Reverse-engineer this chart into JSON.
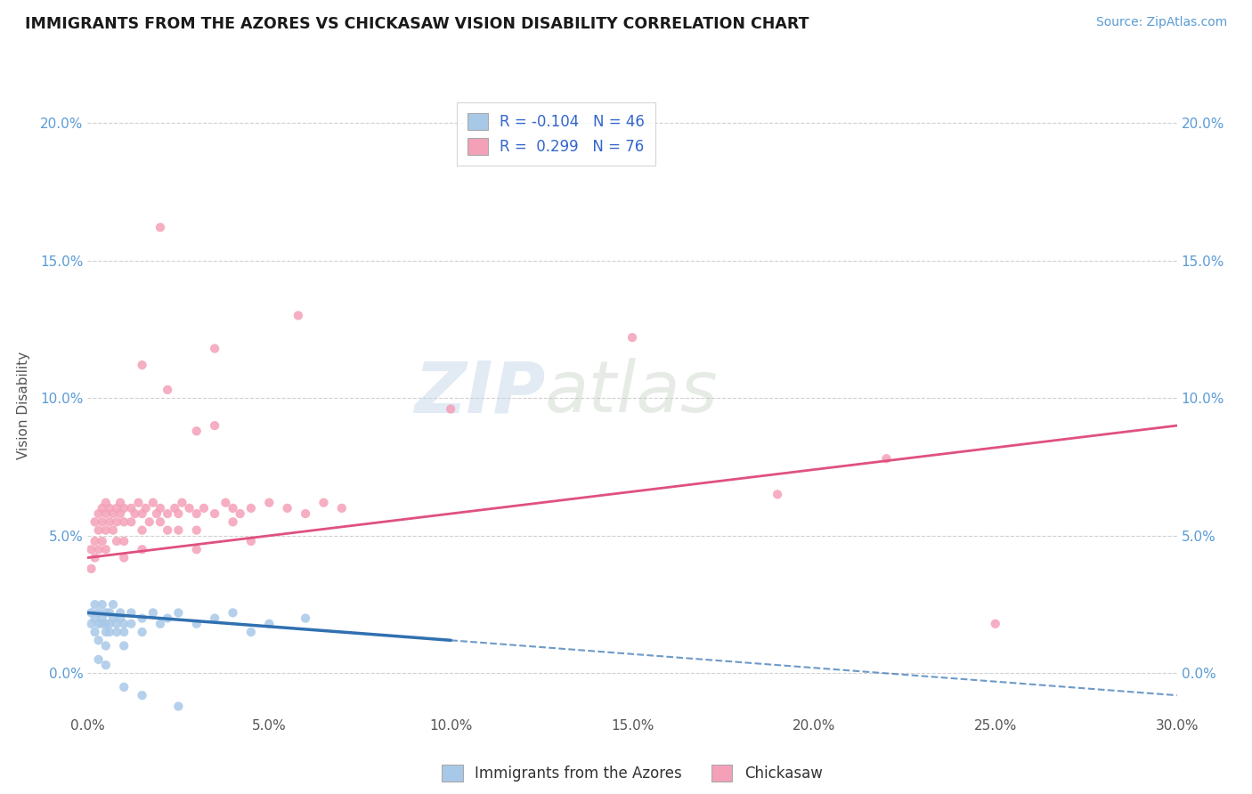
{
  "title": "IMMIGRANTS FROM THE AZORES VS CHICKASAW VISION DISABILITY CORRELATION CHART",
  "source_text": "Source: ZipAtlas.com",
  "xlabel_ticks": [
    "0.0%",
    "5.0%",
    "10.0%",
    "15.0%",
    "20.0%",
    "25.0%",
    "30.0%"
  ],
  "xlabel_vals": [
    0.0,
    0.05,
    0.1,
    0.15,
    0.2,
    0.25,
    0.3
  ],
  "ylabel_ticks": [
    "0.0%",
    "5.0%",
    "10.0%",
    "15.0%",
    "20.0%"
  ],
  "ylabel_vals": [
    0.0,
    0.05,
    0.1,
    0.15,
    0.2
  ],
  "xmin": 0.0,
  "xmax": 0.3,
  "ymin": -0.015,
  "ymax": 0.21,
  "ylabel": "Vision Disability",
  "watermark_zip": "ZIP",
  "watermark_atlas": "atlas",
  "legend_blue_label": "R = -0.104   N = 46",
  "legend_pink_label": "R =  0.299   N = 76",
  "legend_bottom_blue": "Immigrants from the Azores",
  "legend_bottom_pink": "Chickasaw",
  "blue_color": "#a8c8e8",
  "pink_color": "#f4a0b8",
  "blue_line_color": "#3070b0",
  "pink_line_color": "#e05080",
  "blue_line_solid_end": 0.1,
  "blue_line_xstart": 0.0,
  "blue_line_xend": 0.3,
  "pink_line_xstart": 0.0,
  "pink_line_xend": 0.3,
  "blue_scatter": [
    [
      0.001,
      0.022
    ],
    [
      0.001,
      0.018
    ],
    [
      0.002,
      0.025
    ],
    [
      0.002,
      0.02
    ],
    [
      0.002,
      0.015
    ],
    [
      0.003,
      0.022
    ],
    [
      0.003,
      0.018
    ],
    [
      0.003,
      0.012
    ],
    [
      0.004,
      0.02
    ],
    [
      0.004,
      0.025
    ],
    [
      0.004,
      0.018
    ],
    [
      0.005,
      0.022
    ],
    [
      0.005,
      0.018
    ],
    [
      0.005,
      0.015
    ],
    [
      0.005,
      0.01
    ],
    [
      0.006,
      0.022
    ],
    [
      0.006,
      0.018
    ],
    [
      0.006,
      0.015
    ],
    [
      0.007,
      0.02
    ],
    [
      0.007,
      0.025
    ],
    [
      0.008,
      0.018
    ],
    [
      0.008,
      0.015
    ],
    [
      0.009,
      0.02
    ],
    [
      0.009,
      0.022
    ],
    [
      0.01,
      0.018
    ],
    [
      0.01,
      0.015
    ],
    [
      0.01,
      0.01
    ],
    [
      0.012,
      0.022
    ],
    [
      0.012,
      0.018
    ],
    [
      0.015,
      0.02
    ],
    [
      0.015,
      0.015
    ],
    [
      0.018,
      0.022
    ],
    [
      0.02,
      0.018
    ],
    [
      0.022,
      0.02
    ],
    [
      0.025,
      0.022
    ],
    [
      0.03,
      0.018
    ],
    [
      0.035,
      0.02
    ],
    [
      0.04,
      0.022
    ],
    [
      0.045,
      0.015
    ],
    [
      0.05,
      0.018
    ],
    [
      0.06,
      0.02
    ],
    [
      0.003,
      0.005
    ],
    [
      0.005,
      0.003
    ],
    [
      0.01,
      -0.005
    ],
    [
      0.015,
      -0.008
    ],
    [
      0.025,
      -0.012
    ]
  ],
  "pink_scatter": [
    [
      0.001,
      0.045
    ],
    [
      0.001,
      0.038
    ],
    [
      0.002,
      0.055
    ],
    [
      0.002,
      0.048
    ],
    [
      0.002,
      0.042
    ],
    [
      0.003,
      0.058
    ],
    [
      0.003,
      0.052
    ],
    [
      0.003,
      0.045
    ],
    [
      0.004,
      0.06
    ],
    [
      0.004,
      0.055
    ],
    [
      0.004,
      0.048
    ],
    [
      0.005,
      0.062
    ],
    [
      0.005,
      0.058
    ],
    [
      0.005,
      0.052
    ],
    [
      0.005,
      0.045
    ],
    [
      0.006,
      0.06
    ],
    [
      0.006,
      0.055
    ],
    [
      0.007,
      0.058
    ],
    [
      0.007,
      0.052
    ],
    [
      0.008,
      0.06
    ],
    [
      0.008,
      0.055
    ],
    [
      0.008,
      0.048
    ],
    [
      0.009,
      0.062
    ],
    [
      0.009,
      0.058
    ],
    [
      0.01,
      0.06
    ],
    [
      0.01,
      0.055
    ],
    [
      0.01,
      0.048
    ],
    [
      0.01,
      0.042
    ],
    [
      0.012,
      0.06
    ],
    [
      0.012,
      0.055
    ],
    [
      0.013,
      0.058
    ],
    [
      0.014,
      0.062
    ],
    [
      0.015,
      0.058
    ],
    [
      0.015,
      0.052
    ],
    [
      0.015,
      0.045
    ],
    [
      0.016,
      0.06
    ],
    [
      0.017,
      0.055
    ],
    [
      0.018,
      0.062
    ],
    [
      0.019,
      0.058
    ],
    [
      0.02,
      0.06
    ],
    [
      0.02,
      0.055
    ],
    [
      0.022,
      0.058
    ],
    [
      0.022,
      0.052
    ],
    [
      0.024,
      0.06
    ],
    [
      0.025,
      0.058
    ],
    [
      0.025,
      0.052
    ],
    [
      0.026,
      0.062
    ],
    [
      0.028,
      0.06
    ],
    [
      0.03,
      0.058
    ],
    [
      0.03,
      0.052
    ],
    [
      0.03,
      0.045
    ],
    [
      0.032,
      0.06
    ],
    [
      0.035,
      0.058
    ],
    [
      0.038,
      0.062
    ],
    [
      0.04,
      0.06
    ],
    [
      0.04,
      0.055
    ],
    [
      0.042,
      0.058
    ],
    [
      0.045,
      0.06
    ],
    [
      0.045,
      0.048
    ],
    [
      0.05,
      0.062
    ],
    [
      0.055,
      0.06
    ],
    [
      0.06,
      0.058
    ],
    [
      0.065,
      0.062
    ],
    [
      0.07,
      0.06
    ],
    [
      0.02,
      0.162
    ],
    [
      0.035,
      0.118
    ],
    [
      0.058,
      0.13
    ],
    [
      0.015,
      0.112
    ],
    [
      0.022,
      0.103
    ],
    [
      0.03,
      0.088
    ],
    [
      0.035,
      0.09
    ],
    [
      0.1,
      0.096
    ],
    [
      0.15,
      0.122
    ],
    [
      0.19,
      0.065
    ],
    [
      0.22,
      0.078
    ],
    [
      0.25,
      0.018
    ]
  ],
  "blue_trend": [
    0.0,
    0.022,
    0.3,
    -0.008
  ],
  "pink_trend": [
    0.0,
    0.042,
    0.3,
    0.09
  ]
}
